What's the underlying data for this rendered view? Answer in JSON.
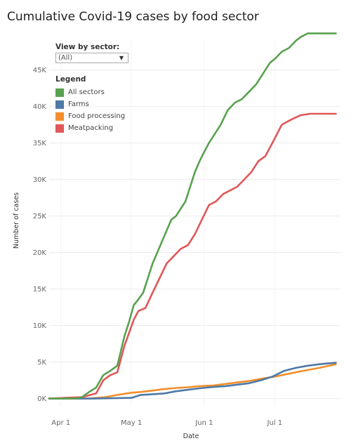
{
  "title": "Cumulative Covid-19 cases by food sector",
  "filter": {
    "label": "View by sector:",
    "value": "(All)",
    "caret": "▼"
  },
  "legend": {
    "title": "Legend",
    "items": [
      {
        "label": "All sectors",
        "color": "#59a14f"
      },
      {
        "label": "Farms",
        "color": "#4e79a7"
      },
      {
        "label": "Food processing",
        "color": "#f28e2b"
      },
      {
        "label": "Meatpacking",
        "color": "#e15759"
      }
    ]
  },
  "chart_data": {
    "type": "line",
    "title": "Cumulative Covid-19 cases by food sector",
    "xlabel": "Date",
    "ylabel": "Number of cases",
    "x_ticks": [
      {
        "label": "Apr 1",
        "date": "2020-04-01"
      },
      {
        "label": "May 1",
        "date": "2020-05-01"
      },
      {
        "label": "Jun 1",
        "date": "2020-06-01"
      },
      {
        "label": "Jul 1",
        "date": "2020-07-01"
      }
    ],
    "y_ticks": [
      {
        "label": "0K",
        "value": 0
      },
      {
        "label": "5K",
        "value": 5000
      },
      {
        "label": "10K",
        "value": 10000
      },
      {
        "label": "15K",
        "value": 15000
      },
      {
        "label": "20K",
        "value": 20000
      },
      {
        "label": "25K",
        "value": 25000
      },
      {
        "label": "30K",
        "value": 30000
      },
      {
        "label": "35K",
        "value": 35000
      },
      {
        "label": "40K",
        "value": 40000
      },
      {
        "label": "45K",
        "value": 45000
      }
    ],
    "xlim": [
      "2020-03-27",
      "2020-07-29"
    ],
    "ylim": [
      -1000,
      49000
    ],
    "grid": true,
    "legend_position": "top-left",
    "series": [
      {
        "name": "All sectors",
        "color": "#59a14f",
        "x": [
          "2020-03-27",
          "2020-04-07",
          "2020-04-10",
          "2020-04-13",
          "2020-04-16",
          "2020-04-19",
          "2020-04-22",
          "2020-04-25",
          "2020-04-28",
          "2020-04-30",
          "2020-05-02",
          "2020-05-04",
          "2020-05-06",
          "2020-05-08",
          "2020-05-10",
          "2020-05-12",
          "2020-05-14",
          "2020-05-16",
          "2020-05-18",
          "2020-05-20",
          "2020-05-22",
          "2020-05-24",
          "2020-05-26",
          "2020-05-28",
          "2020-05-30",
          "2020-06-01",
          "2020-06-03",
          "2020-06-05",
          "2020-06-08",
          "2020-06-11",
          "2020-06-14",
          "2020-06-17",
          "2020-06-20",
          "2020-06-23",
          "2020-06-26",
          "2020-06-29",
          "2020-07-01",
          "2020-07-04",
          "2020-07-07",
          "2020-07-10",
          "2020-07-12",
          "2020-07-15",
          "2020-07-18",
          "2020-07-21",
          "2020-07-24",
          "2020-07-27"
        ],
        "values": [
          0,
          0,
          200,
          900,
          1500,
          3200,
          3800,
          4500,
          8500,
          10500,
          12800,
          13600,
          14500,
          16500,
          18500,
          20000,
          21500,
          23000,
          24500,
          25000,
          26000,
          27000,
          29000,
          31000,
          32500,
          33800,
          35000,
          36000,
          37500,
          39500,
          40500,
          41000,
          42000,
          43000,
          44500,
          46000,
          46500,
          47500,
          48000,
          49000,
          49500,
          50000,
          50000,
          50000,
          50000,
          50000
        ]
      },
      {
        "name": "Farms",
        "color": "#4e79a7",
        "x": [
          "2020-03-27",
          "2020-04-15",
          "2020-05-01",
          "2020-05-05",
          "2020-05-10",
          "2020-05-15",
          "2020-05-20",
          "2020-05-25",
          "2020-05-30",
          "2020-06-05",
          "2020-06-10",
          "2020-06-15",
          "2020-06-20",
          "2020-06-25",
          "2020-06-30",
          "2020-07-05",
          "2020-07-10",
          "2020-07-15",
          "2020-07-20",
          "2020-07-27"
        ],
        "values": [
          0,
          0,
          100,
          500,
          600,
          700,
          1000,
          1200,
          1400,
          1600,
          1700,
          1900,
          2100,
          2500,
          3000,
          3800,
          4200,
          4500,
          4700,
          4900
        ]
      },
      {
        "name": "Food processing",
        "color": "#f28e2b",
        "x": [
          "2020-03-27",
          "2020-04-13",
          "2020-04-20",
          "2020-04-25",
          "2020-05-01",
          "2020-05-05",
          "2020-05-10",
          "2020-05-15",
          "2020-05-20",
          "2020-05-25",
          "2020-05-30",
          "2020-06-05",
          "2020-06-10",
          "2020-06-15",
          "2020-06-20",
          "2020-06-25",
          "2020-07-01",
          "2020-07-07",
          "2020-07-13",
          "2020-07-20",
          "2020-07-27"
        ],
        "values": [
          0,
          0,
          200,
          500,
          800,
          900,
          1100,
          1300,
          1450,
          1550,
          1700,
          1800,
          2000,
          2200,
          2400,
          2700,
          3000,
          3400,
          3800,
          4200,
          4700
        ]
      },
      {
        "name": "Meatpacking",
        "color": "#e15759",
        "x": [
          "2020-03-27",
          "2020-04-10",
          "2020-04-16",
          "2020-04-19",
          "2020-04-22",
          "2020-04-25",
          "2020-04-28",
          "2020-04-30",
          "2020-05-02",
          "2020-05-04",
          "2020-05-07",
          "2020-05-10",
          "2020-05-13",
          "2020-05-16",
          "2020-05-19",
          "2020-05-22",
          "2020-05-25",
          "2020-05-28",
          "2020-05-31",
          "2020-06-03",
          "2020-06-06",
          "2020-06-09",
          "2020-06-12",
          "2020-06-15",
          "2020-06-18",
          "2020-06-21",
          "2020-06-24",
          "2020-06-27",
          "2020-06-30",
          "2020-07-04",
          "2020-07-08",
          "2020-07-12",
          "2020-07-16",
          "2020-07-20",
          "2020-07-24",
          "2020-07-27"
        ],
        "values": [
          0,
          200,
          700,
          2500,
          3200,
          3600,
          7200,
          9000,
          10800,
          12000,
          12400,
          14500,
          16500,
          18500,
          19500,
          20500,
          21000,
          22500,
          24500,
          26500,
          27000,
          28000,
          28500,
          29000,
          30000,
          31000,
          32500,
          33200,
          35000,
          37500,
          38200,
          38800,
          39000,
          39000,
          39000,
          39000
        ]
      }
    ]
  }
}
